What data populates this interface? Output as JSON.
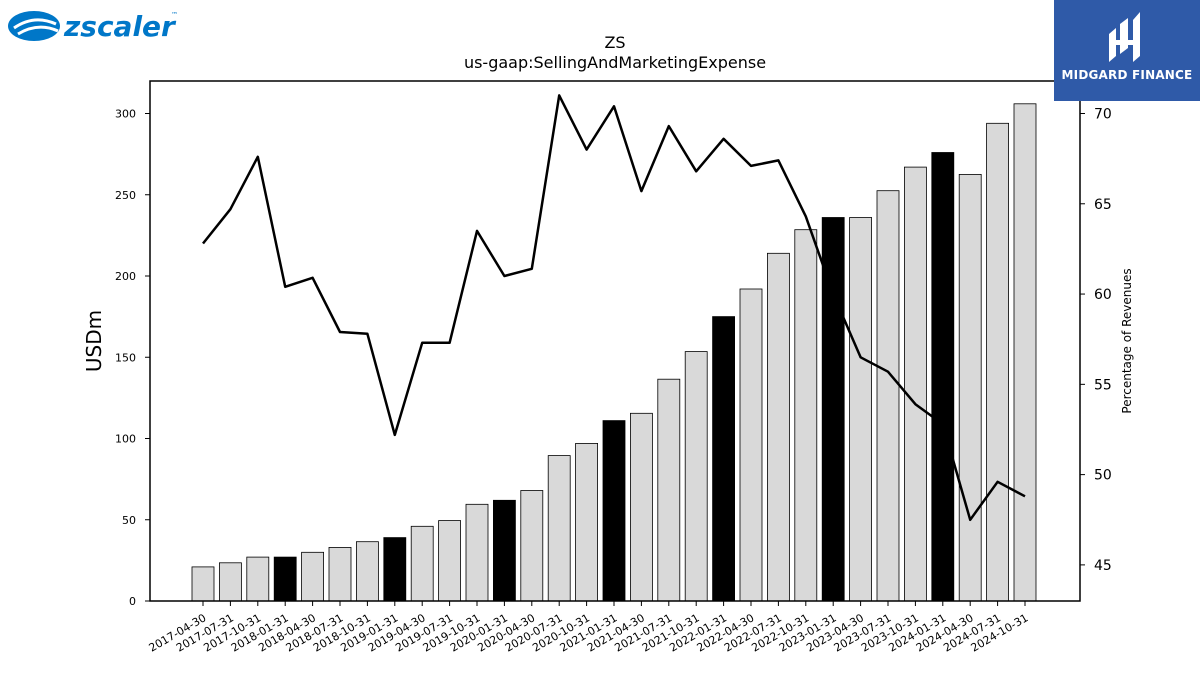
{
  "brand": {
    "left_logo_text": "zscaler",
    "left_logo_tm": "™",
    "left_logo_color": "#0077c8",
    "right_logo_text": "MIDGARD FINANCE",
    "right_logo_bg": "#2f5aa8"
  },
  "chart_data": {
    "type": "bar",
    "title": "ZS",
    "subtitle": "us-gaap:SellingAndMarketingExpense",
    "ylabel": "USDm",
    "y2label": "Percentage of Revenues",
    "ylim": [
      0,
      320
    ],
    "y2lim": [
      43,
      71.8
    ],
    "yticks": [
      0,
      50,
      100,
      150,
      200,
      250,
      300
    ],
    "y2ticks": [
      45,
      50,
      55,
      60,
      65,
      70
    ],
    "categories": [
      "2017-04-30",
      "2017-07-31",
      "2017-10-31",
      "2018-01-31",
      "2018-04-30",
      "2018-07-31",
      "2018-10-31",
      "2019-01-31",
      "2019-04-30",
      "2019-07-31",
      "2019-10-31",
      "2020-01-31",
      "2020-04-30",
      "2020-07-31",
      "2020-10-31",
      "2021-01-31",
      "2021-04-30",
      "2021-07-31",
      "2021-10-31",
      "2022-01-31",
      "2022-04-30",
      "2022-07-31",
      "2022-10-31",
      "2023-01-31",
      "2023-04-30",
      "2023-07-31",
      "2023-10-31",
      "2024-01-31",
      "2024-04-30",
      "2024-07-31",
      "2024-10-31"
    ],
    "series": [
      {
        "kind": "bar",
        "values": [
          21,
          23.5,
          27,
          27,
          30,
          33,
          36.5,
          39,
          46,
          49.5,
          59.5,
          62,
          68,
          89.5,
          97,
          111,
          115.5,
          136.5,
          153.5,
          175,
          192,
          214,
          228.5,
          236,
          236,
          252.5,
          267,
          276,
          262.5,
          294,
          306
        ],
        "highlight": [
          false,
          false,
          false,
          true,
          false,
          false,
          false,
          true,
          false,
          false,
          false,
          true,
          false,
          false,
          false,
          true,
          false,
          false,
          false,
          true,
          false,
          false,
          false,
          true,
          false,
          false,
          false,
          true,
          false,
          false,
          false
        ],
        "color": "#d9d9d9",
        "highlight_color": "#000000"
      },
      {
        "kind": "line",
        "axis": "right",
        "values": [
          62.8,
          64.7,
          67.6,
          60.4,
          60.9,
          57.9,
          57.8,
          52.2,
          57.3,
          57.3,
          63.5,
          61,
          61.4,
          71,
          68,
          70.4,
          65.7,
          69.3,
          66.8,
          68.6,
          67.1,
          67.4,
          64.3,
          60,
          56.5,
          55.7,
          53.9,
          52.8,
          47.5,
          49.6,
          48.8
        ],
        "color": "#000000"
      }
    ],
    "grid": false,
    "legend": "none"
  }
}
